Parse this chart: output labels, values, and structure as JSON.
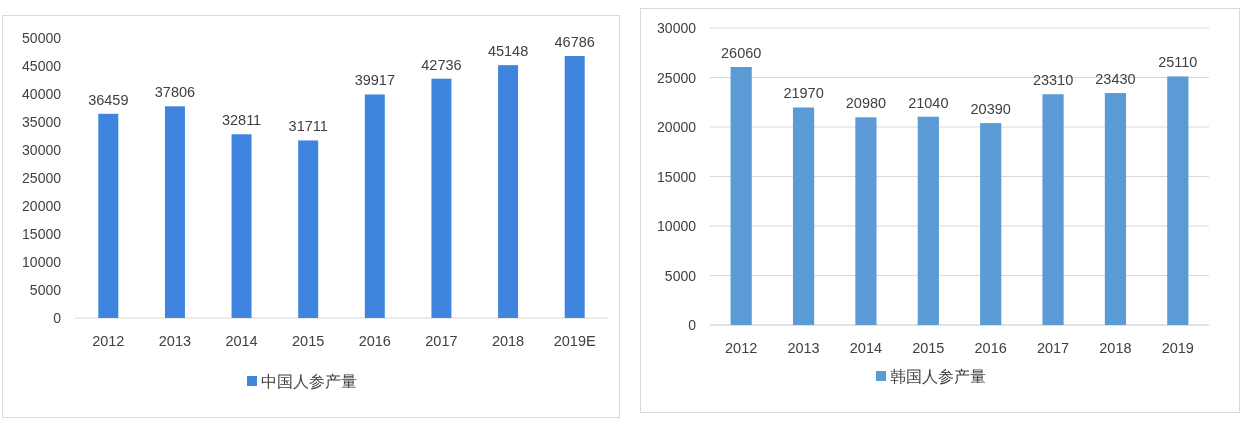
{
  "chart_data": [
    {
      "type": "bar",
      "categories": [
        "2012",
        "2013",
        "2014",
        "2015",
        "2016",
        "2017",
        "2018",
        "2019E"
      ],
      "series": [
        {
          "name": "中国人参产量",
          "color": "#3f85e0",
          "values": [
            36459,
            37806,
            32811,
            31711,
            39917,
            42736,
            45148,
            46786
          ]
        }
      ],
      "ylim": [
        0,
        50000
      ],
      "yticks": [
        0,
        5000,
        10000,
        15000,
        20000,
        25000,
        30000,
        35000,
        40000,
        45000,
        50000
      ],
      "grid": false,
      "legend": "bottom",
      "data_labels": true
    },
    {
      "type": "bar",
      "categories": [
        "2012",
        "2013",
        "2014",
        "2015",
        "2016",
        "2017",
        "2018",
        "2019"
      ],
      "series": [
        {
          "name": "韩国人参产量",
          "color": "#5b9bd5",
          "values": [
            26060,
            21970,
            20980,
            21040,
            20390,
            23310,
            23430,
            25110
          ]
        }
      ],
      "ylim": [
        0,
        30000
      ],
      "yticks": [
        0,
        5000,
        10000,
        15000,
        20000,
        25000,
        30000
      ],
      "grid": "y",
      "legend": "bottom",
      "data_labels": true
    }
  ]
}
